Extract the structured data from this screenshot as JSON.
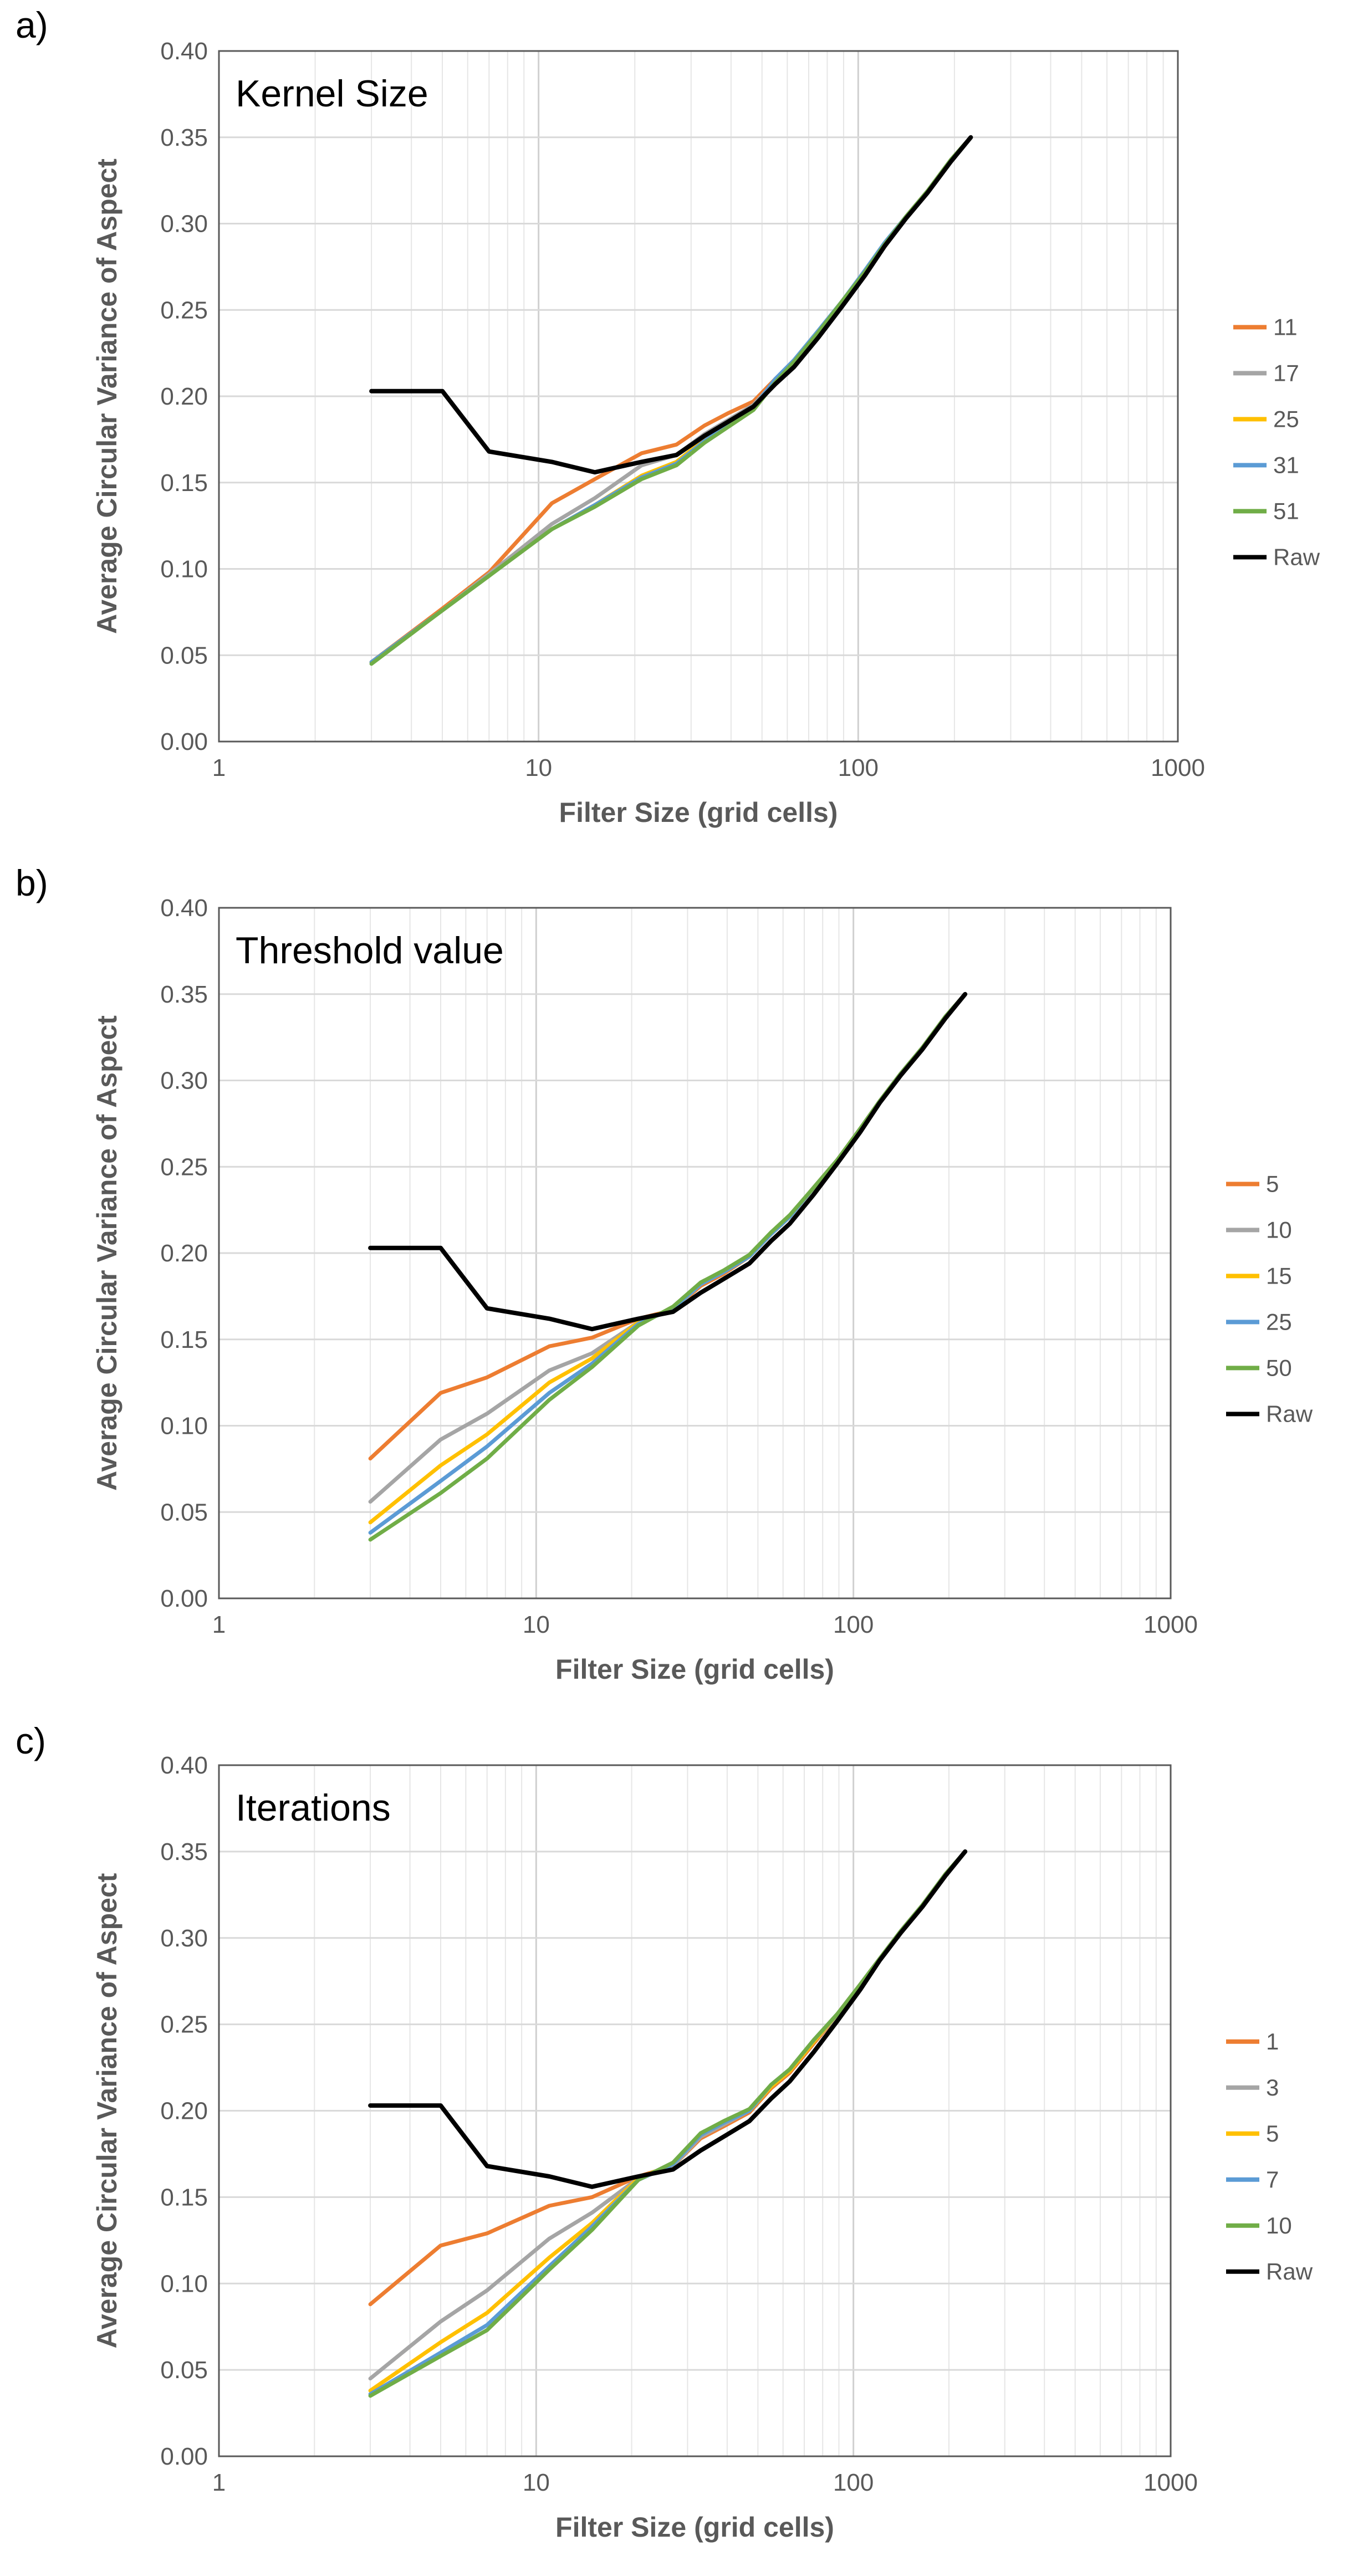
{
  "chart_data": [
    {
      "type": "line",
      "panel_label": "a)",
      "title": "Kernel Size",
      "xlabel": "Filter Size (grid cells)",
      "ylabel": "Average Circular Variance of Aspect",
      "xscale": "log",
      "xlim": [
        1,
        1000
      ],
      "ylim": [
        0,
        0.4
      ],
      "xticks": [
        "1",
        "10",
        "100",
        "1000"
      ],
      "yticks": [
        "0.00",
        "0.05",
        "0.10",
        "0.15",
        "0.20",
        "0.25",
        "0.30",
        "0.35",
        "0.40"
      ],
      "legend_position": "right",
      "grid": true,
      "series": [
        {
          "name": "11",
          "color": "#ED7D31",
          "x": [
            3,
            5,
            7,
            11,
            15,
            21,
            27,
            33,
            39,
            47,
            55,
            63,
            75,
            89,
            105,
            121,
            141,
            165,
            195,
            225
          ],
          "y": [
            0.046,
            0.077,
            0.098,
            0.138,
            0.152,
            0.167,
            0.172,
            0.183,
            0.19,
            0.197,
            0.21,
            0.22,
            0.237,
            0.255,
            0.272,
            0.288,
            0.304,
            0.319,
            0.337,
            0.35
          ]
        },
        {
          "name": "17",
          "color": "#A5A5A5",
          "x": [
            3,
            5,
            7,
            11,
            15,
            21,
            27,
            33,
            39,
            47,
            55,
            63,
            75,
            89,
            105,
            121,
            141,
            165,
            195,
            225
          ],
          "y": [
            0.046,
            0.076,
            0.097,
            0.126,
            0.141,
            0.16,
            0.166,
            0.178,
            0.186,
            0.195,
            0.209,
            0.219,
            0.236,
            0.254,
            0.272,
            0.288,
            0.304,
            0.319,
            0.337,
            0.35
          ]
        },
        {
          "name": "25",
          "color": "#FFC000",
          "x": [
            3,
            5,
            7,
            11,
            15,
            21,
            27,
            33,
            39,
            47,
            55,
            63,
            75,
            89,
            105,
            121,
            141,
            165,
            195,
            225
          ],
          "y": [
            0.046,
            0.076,
            0.096,
            0.123,
            0.137,
            0.154,
            0.162,
            0.175,
            0.183,
            0.193,
            0.208,
            0.219,
            0.236,
            0.254,
            0.272,
            0.288,
            0.304,
            0.319,
            0.337,
            0.35
          ]
        },
        {
          "name": "31",
          "color": "#5B9BD5",
          "x": [
            3,
            5,
            7,
            11,
            15,
            21,
            27,
            33,
            39,
            47,
            55,
            63,
            75,
            89,
            105,
            121,
            141,
            165,
            195,
            225
          ],
          "y": [
            0.046,
            0.076,
            0.096,
            0.123,
            0.137,
            0.153,
            0.161,
            0.174,
            0.183,
            0.193,
            0.21,
            0.221,
            0.238,
            0.255,
            0.273,
            0.289,
            0.304,
            0.319,
            0.337,
            0.35
          ]
        },
        {
          "name": "51",
          "color": "#70AD47",
          "x": [
            3,
            5,
            7,
            11,
            15,
            21,
            27,
            33,
            39,
            47,
            55,
            63,
            75,
            89,
            105,
            121,
            141,
            165,
            195,
            225
          ],
          "y": [
            0.045,
            0.076,
            0.096,
            0.123,
            0.136,
            0.152,
            0.16,
            0.173,
            0.182,
            0.192,
            0.208,
            0.22,
            0.237,
            0.255,
            0.272,
            0.288,
            0.304,
            0.319,
            0.337,
            0.35
          ]
        },
        {
          "name": "Raw",
          "color": "#000000",
          "x": [
            3,
            5,
            7,
            11,
            15,
            21,
            27,
            33,
            39,
            47,
            55,
            63,
            75,
            89,
            105,
            121,
            141,
            165,
            195,
            225
          ],
          "y": [
            0.203,
            0.203,
            0.168,
            0.162,
            0.156,
            0.162,
            0.166,
            0.177,
            0.185,
            0.194,
            0.207,
            0.217,
            0.234,
            0.252,
            0.27,
            0.287,
            0.303,
            0.318,
            0.336,
            0.35
          ]
        }
      ]
    },
    {
      "type": "line",
      "panel_label": "b)",
      "title": "Threshold value",
      "xlabel": "Filter Size (grid cells)",
      "ylabel": "Average Circular Variance of Aspect",
      "xscale": "log",
      "xlim": [
        1,
        1000
      ],
      "ylim": [
        0,
        0.4
      ],
      "xticks": [
        "1",
        "10",
        "100",
        "1000"
      ],
      "yticks": [
        "0.00",
        "0.05",
        "0.10",
        "0.15",
        "0.20",
        "0.25",
        "0.30",
        "0.35",
        "0.40"
      ],
      "legend_position": "right",
      "grid": true,
      "series": [
        {
          "name": "5",
          "color": "#ED7D31",
          "x": [
            3,
            5,
            7,
            11,
            15,
            21,
            27,
            33,
            39,
            47,
            55,
            63,
            75,
            89,
            105,
            121,
            141,
            165,
            195,
            225
          ],
          "y": [
            0.081,
            0.119,
            0.128,
            0.146,
            0.151,
            0.162,
            0.167,
            0.181,
            0.188,
            0.198,
            0.211,
            0.221,
            0.238,
            0.254,
            0.272,
            0.288,
            0.304,
            0.319,
            0.337,
            0.35
          ]
        },
        {
          "name": "10",
          "color": "#A5A5A5",
          "x": [
            3,
            5,
            7,
            11,
            15,
            21,
            27,
            33,
            39,
            47,
            55,
            63,
            75,
            89,
            105,
            121,
            141,
            165,
            195,
            225
          ],
          "y": [
            0.056,
            0.092,
            0.107,
            0.132,
            0.142,
            0.16,
            0.167,
            0.182,
            0.189,
            0.198,
            0.211,
            0.221,
            0.238,
            0.254,
            0.272,
            0.288,
            0.304,
            0.319,
            0.337,
            0.35
          ]
        },
        {
          "name": "15",
          "color": "#FFC000",
          "x": [
            3,
            5,
            7,
            11,
            15,
            21,
            27,
            33,
            39,
            47,
            55,
            63,
            75,
            89,
            105,
            121,
            141,
            165,
            195,
            225
          ],
          "y": [
            0.044,
            0.077,
            0.095,
            0.125,
            0.139,
            0.16,
            0.168,
            0.182,
            0.189,
            0.198,
            0.211,
            0.221,
            0.238,
            0.254,
            0.272,
            0.288,
            0.304,
            0.319,
            0.337,
            0.35
          ]
        },
        {
          "name": "25",
          "color": "#5B9BD5",
          "x": [
            3,
            5,
            7,
            11,
            15,
            21,
            27,
            33,
            39,
            47,
            55,
            63,
            75,
            89,
            105,
            121,
            141,
            165,
            195,
            225
          ],
          "y": [
            0.038,
            0.068,
            0.088,
            0.119,
            0.136,
            0.159,
            0.168,
            0.182,
            0.189,
            0.198,
            0.211,
            0.221,
            0.238,
            0.254,
            0.272,
            0.288,
            0.304,
            0.319,
            0.337,
            0.35
          ]
        },
        {
          "name": "50",
          "color": "#70AD47",
          "x": [
            3,
            5,
            7,
            11,
            15,
            21,
            27,
            33,
            39,
            47,
            55,
            63,
            75,
            89,
            105,
            121,
            141,
            165,
            195,
            225
          ],
          "y": [
            0.034,
            0.061,
            0.081,
            0.115,
            0.134,
            0.158,
            0.169,
            0.183,
            0.19,
            0.199,
            0.212,
            0.222,
            0.238,
            0.254,
            0.272,
            0.288,
            0.304,
            0.319,
            0.337,
            0.35
          ]
        },
        {
          "name": "Raw",
          "color": "#000000",
          "x": [
            3,
            5,
            7,
            11,
            15,
            21,
            27,
            33,
            39,
            47,
            55,
            63,
            75,
            89,
            105,
            121,
            141,
            165,
            195,
            225
          ],
          "y": [
            0.203,
            0.203,
            0.168,
            0.162,
            0.156,
            0.162,
            0.166,
            0.177,
            0.185,
            0.194,
            0.207,
            0.217,
            0.234,
            0.252,
            0.27,
            0.287,
            0.303,
            0.318,
            0.336,
            0.35
          ]
        }
      ]
    },
    {
      "type": "line",
      "panel_label": "c)",
      "title": "Iterations",
      "xlabel": "Filter Size (grid cells)",
      "ylabel": "Average Circular Variance of Aspect",
      "xscale": "log",
      "xlim": [
        1,
        1000
      ],
      "ylim": [
        0,
        0.4
      ],
      "xticks": [
        "1",
        "10",
        "100",
        "1000"
      ],
      "yticks": [
        "0.00",
        "0.05",
        "0.10",
        "0.15",
        "0.20",
        "0.25",
        "0.30",
        "0.35",
        "0.40"
      ],
      "legend_position": "right",
      "grid": true,
      "series": [
        {
          "name": "1",
          "color": "#ED7D31",
          "x": [
            3,
            5,
            7,
            11,
            15,
            21,
            27,
            33,
            39,
            47,
            55,
            63,
            75,
            89,
            105,
            121,
            141,
            165,
            195,
            225
          ],
          "y": [
            0.088,
            0.122,
            0.129,
            0.145,
            0.15,
            0.162,
            0.168,
            0.184,
            0.191,
            0.199,
            0.213,
            0.222,
            0.239,
            0.255,
            0.273,
            0.288,
            0.304,
            0.319,
            0.337,
            0.35
          ]
        },
        {
          "name": "3",
          "color": "#A5A5A5",
          "x": [
            3,
            5,
            7,
            11,
            15,
            21,
            27,
            33,
            39,
            47,
            55,
            63,
            75,
            89,
            105,
            121,
            141,
            165,
            195,
            225
          ],
          "y": [
            0.045,
            0.078,
            0.096,
            0.126,
            0.141,
            0.161,
            0.168,
            0.185,
            0.192,
            0.2,
            0.214,
            0.223,
            0.24,
            0.255,
            0.273,
            0.288,
            0.304,
            0.319,
            0.337,
            0.35
          ]
        },
        {
          "name": "5",
          "color": "#FFC000",
          "x": [
            3,
            5,
            7,
            11,
            15,
            21,
            27,
            33,
            39,
            47,
            55,
            63,
            75,
            89,
            105,
            121,
            141,
            165,
            195,
            225
          ],
          "y": [
            0.038,
            0.066,
            0.083,
            0.115,
            0.135,
            0.161,
            0.169,
            0.186,
            0.193,
            0.2,
            0.214,
            0.223,
            0.24,
            0.256,
            0.273,
            0.288,
            0.304,
            0.319,
            0.337,
            0.35
          ]
        },
        {
          "name": "7",
          "color": "#5B9BD5",
          "x": [
            3,
            5,
            7,
            11,
            15,
            21,
            27,
            33,
            39,
            47,
            55,
            63,
            75,
            89,
            105,
            121,
            141,
            165,
            195,
            225
          ],
          "y": [
            0.036,
            0.06,
            0.076,
            0.11,
            0.133,
            0.16,
            0.169,
            0.186,
            0.193,
            0.2,
            0.215,
            0.224,
            0.241,
            0.256,
            0.273,
            0.288,
            0.304,
            0.319,
            0.337,
            0.35
          ]
        },
        {
          "name": "10",
          "color": "#70AD47",
          "x": [
            3,
            5,
            7,
            11,
            15,
            21,
            27,
            33,
            39,
            47,
            55,
            63,
            75,
            89,
            105,
            121,
            141,
            165,
            195,
            225
          ],
          "y": [
            0.035,
            0.058,
            0.073,
            0.108,
            0.131,
            0.16,
            0.17,
            0.187,
            0.194,
            0.201,
            0.215,
            0.224,
            0.241,
            0.256,
            0.273,
            0.288,
            0.304,
            0.319,
            0.337,
            0.35
          ]
        },
        {
          "name": "Raw",
          "color": "#000000",
          "x": [
            3,
            5,
            7,
            11,
            15,
            21,
            27,
            33,
            39,
            47,
            55,
            63,
            75,
            89,
            105,
            121,
            141,
            165,
            195,
            225
          ],
          "y": [
            0.203,
            0.203,
            0.168,
            0.162,
            0.156,
            0.162,
            0.166,
            0.177,
            0.185,
            0.194,
            0.207,
            0.217,
            0.234,
            0.252,
            0.27,
            0.287,
            0.303,
            0.318,
            0.336,
            0.35
          ]
        }
      ]
    }
  ]
}
